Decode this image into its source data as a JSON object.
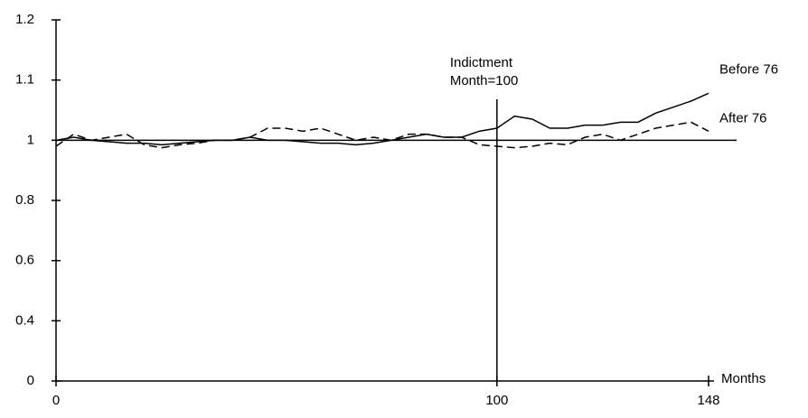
{
  "chart_data": {
    "type": "line",
    "x_label": "Months",
    "annotation": [
      "Indictment",
      "Month=100"
    ],
    "vline": 100,
    "hline": 1,
    "xlim": [
      0,
      148
    ],
    "xticks": [
      0,
      100,
      148
    ],
    "ylim": [
      0,
      1.2
    ],
    "yticks": [
      0,
      0.4,
      0.6,
      0.8,
      1,
      1.1,
      1.2
    ],
    "x": [
      0,
      4,
      8,
      12,
      16,
      20,
      24,
      28,
      32,
      36,
      40,
      44,
      48,
      52,
      56,
      60,
      64,
      68,
      72,
      76,
      80,
      84,
      88,
      92,
      96,
      100,
      104,
      108,
      112,
      116,
      120,
      124,
      128,
      132,
      136,
      140,
      144,
      148
    ],
    "series": [
      {
        "name": "Before 76",
        "color": "#000000",
        "dash": false,
        "values": [
          1.0,
          1.005,
          1.0,
          0.995,
          0.99,
          0.99,
          0.985,
          0.99,
          0.995,
          1.0,
          1.0,
          1.005,
          1.0,
          1.0,
          0.995,
          0.99,
          0.99,
          0.985,
          0.99,
          1.0,
          1.005,
          1.01,
          1.005,
          1.005,
          1.015,
          1.02,
          1.04,
          1.035,
          1.02,
          1.02,
          1.025,
          1.025,
          1.03,
          1.03,
          1.045,
          1.055,
          1.065,
          1.078
        ]
      },
      {
        "name": "After 76",
        "color": "#000000",
        "dash": true,
        "values": [
          0.98,
          1.01,
          1.0,
          1.005,
          1.01,
          0.985,
          0.975,
          0.985,
          0.99,
          1.0,
          1.0,
          1.005,
          1.02,
          1.02,
          1.015,
          1.02,
          1.01,
          1.0,
          1.005,
          1.0,
          1.01,
          1.01,
          1.005,
          1.005,
          0.985,
          0.98,
          0.975,
          0.98,
          0.99,
          0.985,
          1.005,
          1.01,
          1.0,
          1.01,
          1.02,
          1.025,
          1.03,
          1.015
        ]
      }
    ]
  }
}
